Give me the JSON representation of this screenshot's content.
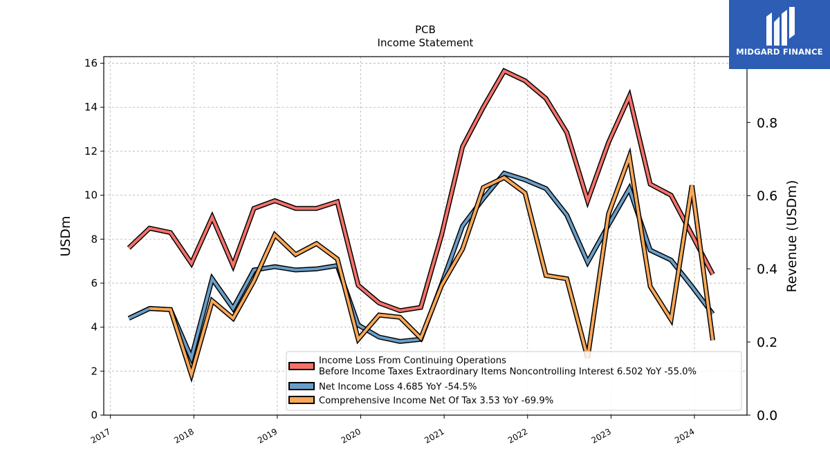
{
  "chart_data": {
    "type": "line",
    "title": "PCB",
    "subtitle": "Income Statement",
    "ylabel": "USDm",
    "y2label": "Revenue (USDm)",
    "ylim": [
      0,
      16.3
    ],
    "y2lim": [
      0,
      0.98
    ],
    "xlim": [
      2016.92,
      2024.63
    ],
    "yticks": [
      0,
      2,
      4,
      6,
      8,
      10,
      12,
      14,
      16
    ],
    "y2ticks": [
      "0.0",
      "0.2",
      "0.4",
      "0.6",
      "0.8"
    ],
    "y2tick_values": [
      0,
      0.2,
      0.4,
      0.6,
      0.8
    ],
    "xticks": [
      "2017",
      "2018",
      "2019",
      "2020",
      "2021",
      "2022",
      "2023",
      "2024"
    ],
    "xtick_values": [
      2017,
      2018,
      2019,
      2020,
      2021,
      2022,
      2023,
      2024
    ],
    "grid": true,
    "legend_position": "lower-right",
    "series": [
      {
        "name": "Income Loss From Continuing Operations\nBefore Income Taxes Extraordinary Items Noncontrolling Interest  6.502 YoY -55.0%",
        "color": "#f4726a",
        "x": [
          2017.22,
          2017.47,
          2017.72,
          2017.97,
          2018.22,
          2018.47,
          2018.72,
          2018.97,
          2019.22,
          2019.47,
          2019.72,
          2019.97,
          2020.22,
          2020.47,
          2020.72,
          2020.97,
          2021.22,
          2021.47,
          2021.72,
          2021.97,
          2022.22,
          2022.47,
          2022.72,
          2022.97,
          2023.22,
          2023.47,
          2023.72,
          2023.97,
          2024.22
        ],
        "values": [
          7.6,
          8.5,
          8.3,
          6.9,
          9.0,
          6.8,
          9.4,
          9.75,
          9.4,
          9.4,
          9.7,
          5.9,
          5.1,
          4.75,
          4.9,
          8.2,
          12.2,
          14.0,
          15.65,
          15.2,
          14.4,
          12.85,
          9.75,
          12.4,
          14.5,
          10.5,
          10.0,
          8.2,
          6.4
        ]
      },
      {
        "name": "Net Income Loss  4.685 YoY -54.5%",
        "color": "#6a9ec8",
        "x": [
          2017.22,
          2017.47,
          2017.72,
          2017.97,
          2018.22,
          2018.47,
          2018.72,
          2018.97,
          2019.22,
          2019.47,
          2019.72,
          2019.97,
          2020.22,
          2020.47,
          2020.72,
          2020.97,
          2021.22,
          2021.47,
          2021.72,
          2021.97,
          2022.22,
          2022.47,
          2022.72,
          2022.97,
          2023.22,
          2023.47,
          2023.72,
          2023.97,
          2024.22
        ],
        "values": [
          4.4,
          4.85,
          4.8,
          2.6,
          6.2,
          4.85,
          6.6,
          6.75,
          6.6,
          6.65,
          6.8,
          4.1,
          3.55,
          3.35,
          3.45,
          5.95,
          8.6,
          9.85,
          11.0,
          10.7,
          10.3,
          9.1,
          6.95,
          8.65,
          10.3,
          7.5,
          7.05,
          5.85,
          4.6
        ]
      },
      {
        "name": "Comprehensive Income Net Of Tax  3.53 YoY -69.9%",
        "color": "#f9a858",
        "x": [
          2017.47,
          2017.72,
          2017.97,
          2018.22,
          2018.47,
          2018.72,
          2018.97,
          2019.22,
          2019.47,
          2019.72,
          2019.97,
          2020.22,
          2020.47,
          2020.72,
          2020.97,
          2021.22,
          2021.47,
          2021.72,
          2021.97,
          2022.22,
          2022.47,
          2022.72,
          2022.97,
          2023.22,
          2023.47,
          2023.72,
          2023.97,
          2024.22
        ],
        "values": [
          4.85,
          4.8,
          1.85,
          5.2,
          4.4,
          6.1,
          8.2,
          7.3,
          7.8,
          7.1,
          3.45,
          4.55,
          4.45,
          3.5,
          5.9,
          7.55,
          10.35,
          10.8,
          10.1,
          6.35,
          6.2,
          2.6,
          9.15,
          11.75,
          5.85,
          4.35,
          10.45,
          3.4
        ]
      }
    ]
  },
  "logo": {
    "text": "MIDGARD FINANCE"
  }
}
